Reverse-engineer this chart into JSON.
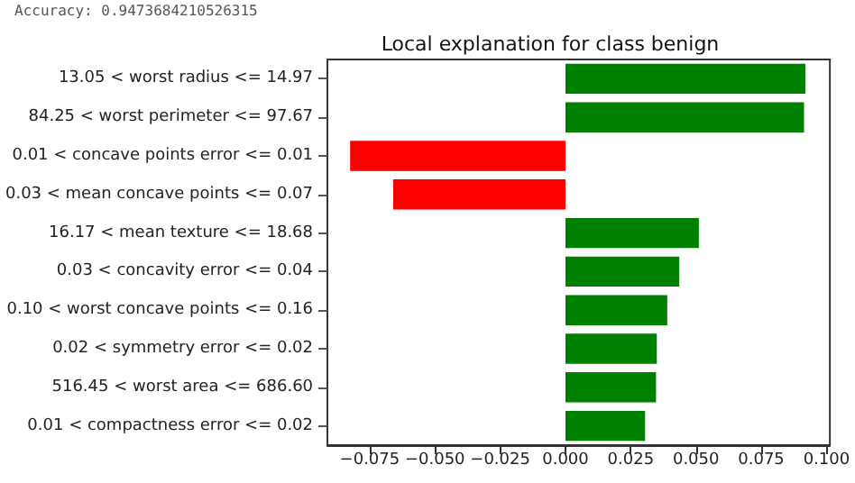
{
  "chart_data": {
    "type": "bar",
    "orientation": "horizontal",
    "title": "Local explanation for class benign",
    "annotations": [
      "Accuracy: 0.9473684210526315"
    ],
    "categories": [
      "13.05 < worst radius <= 14.97",
      "84.25 < worst perimeter <= 97.67",
      "0.01 < concave points error <= 0.01",
      "0.03 < mean concave points <= 0.07",
      "16.17 < mean texture <= 18.68",
      "0.03 < concavity error <= 0.04",
      "0.10 < worst concave points <= 0.16",
      "0.02 < symmetry error <= 0.02",
      "516.45 < worst area <= 686.60",
      "0.01 < compactness error <= 0.02"
    ],
    "values": [
      0.0919,
      0.0914,
      -0.0825,
      -0.066,
      0.0511,
      0.0436,
      0.039,
      0.035,
      0.0347,
      0.0305
    ],
    "colors": [
      "#008000",
      "#008000",
      "#ff0000",
      "#ff0000",
      "#008000",
      "#008000",
      "#008000",
      "#008000",
      "#008000",
      "#008000"
    ],
    "xlim": [
      -0.0912,
      0.1013
    ],
    "xticks": [
      {
        "value": -0.075,
        "label": "−0.075"
      },
      {
        "value": -0.05,
        "label": "−0.050"
      },
      {
        "value": -0.025,
        "label": "−0.025"
      },
      {
        "value": 0,
        "label": "0.000"
      },
      {
        "value": 0.025,
        "label": "0.025"
      },
      {
        "value": 0.05,
        "label": "0.050"
      },
      {
        "value": 0.075,
        "label": "0.075"
      },
      {
        "value": 0.1,
        "label": "0.100"
      }
    ],
    "data_labels": false
  }
}
